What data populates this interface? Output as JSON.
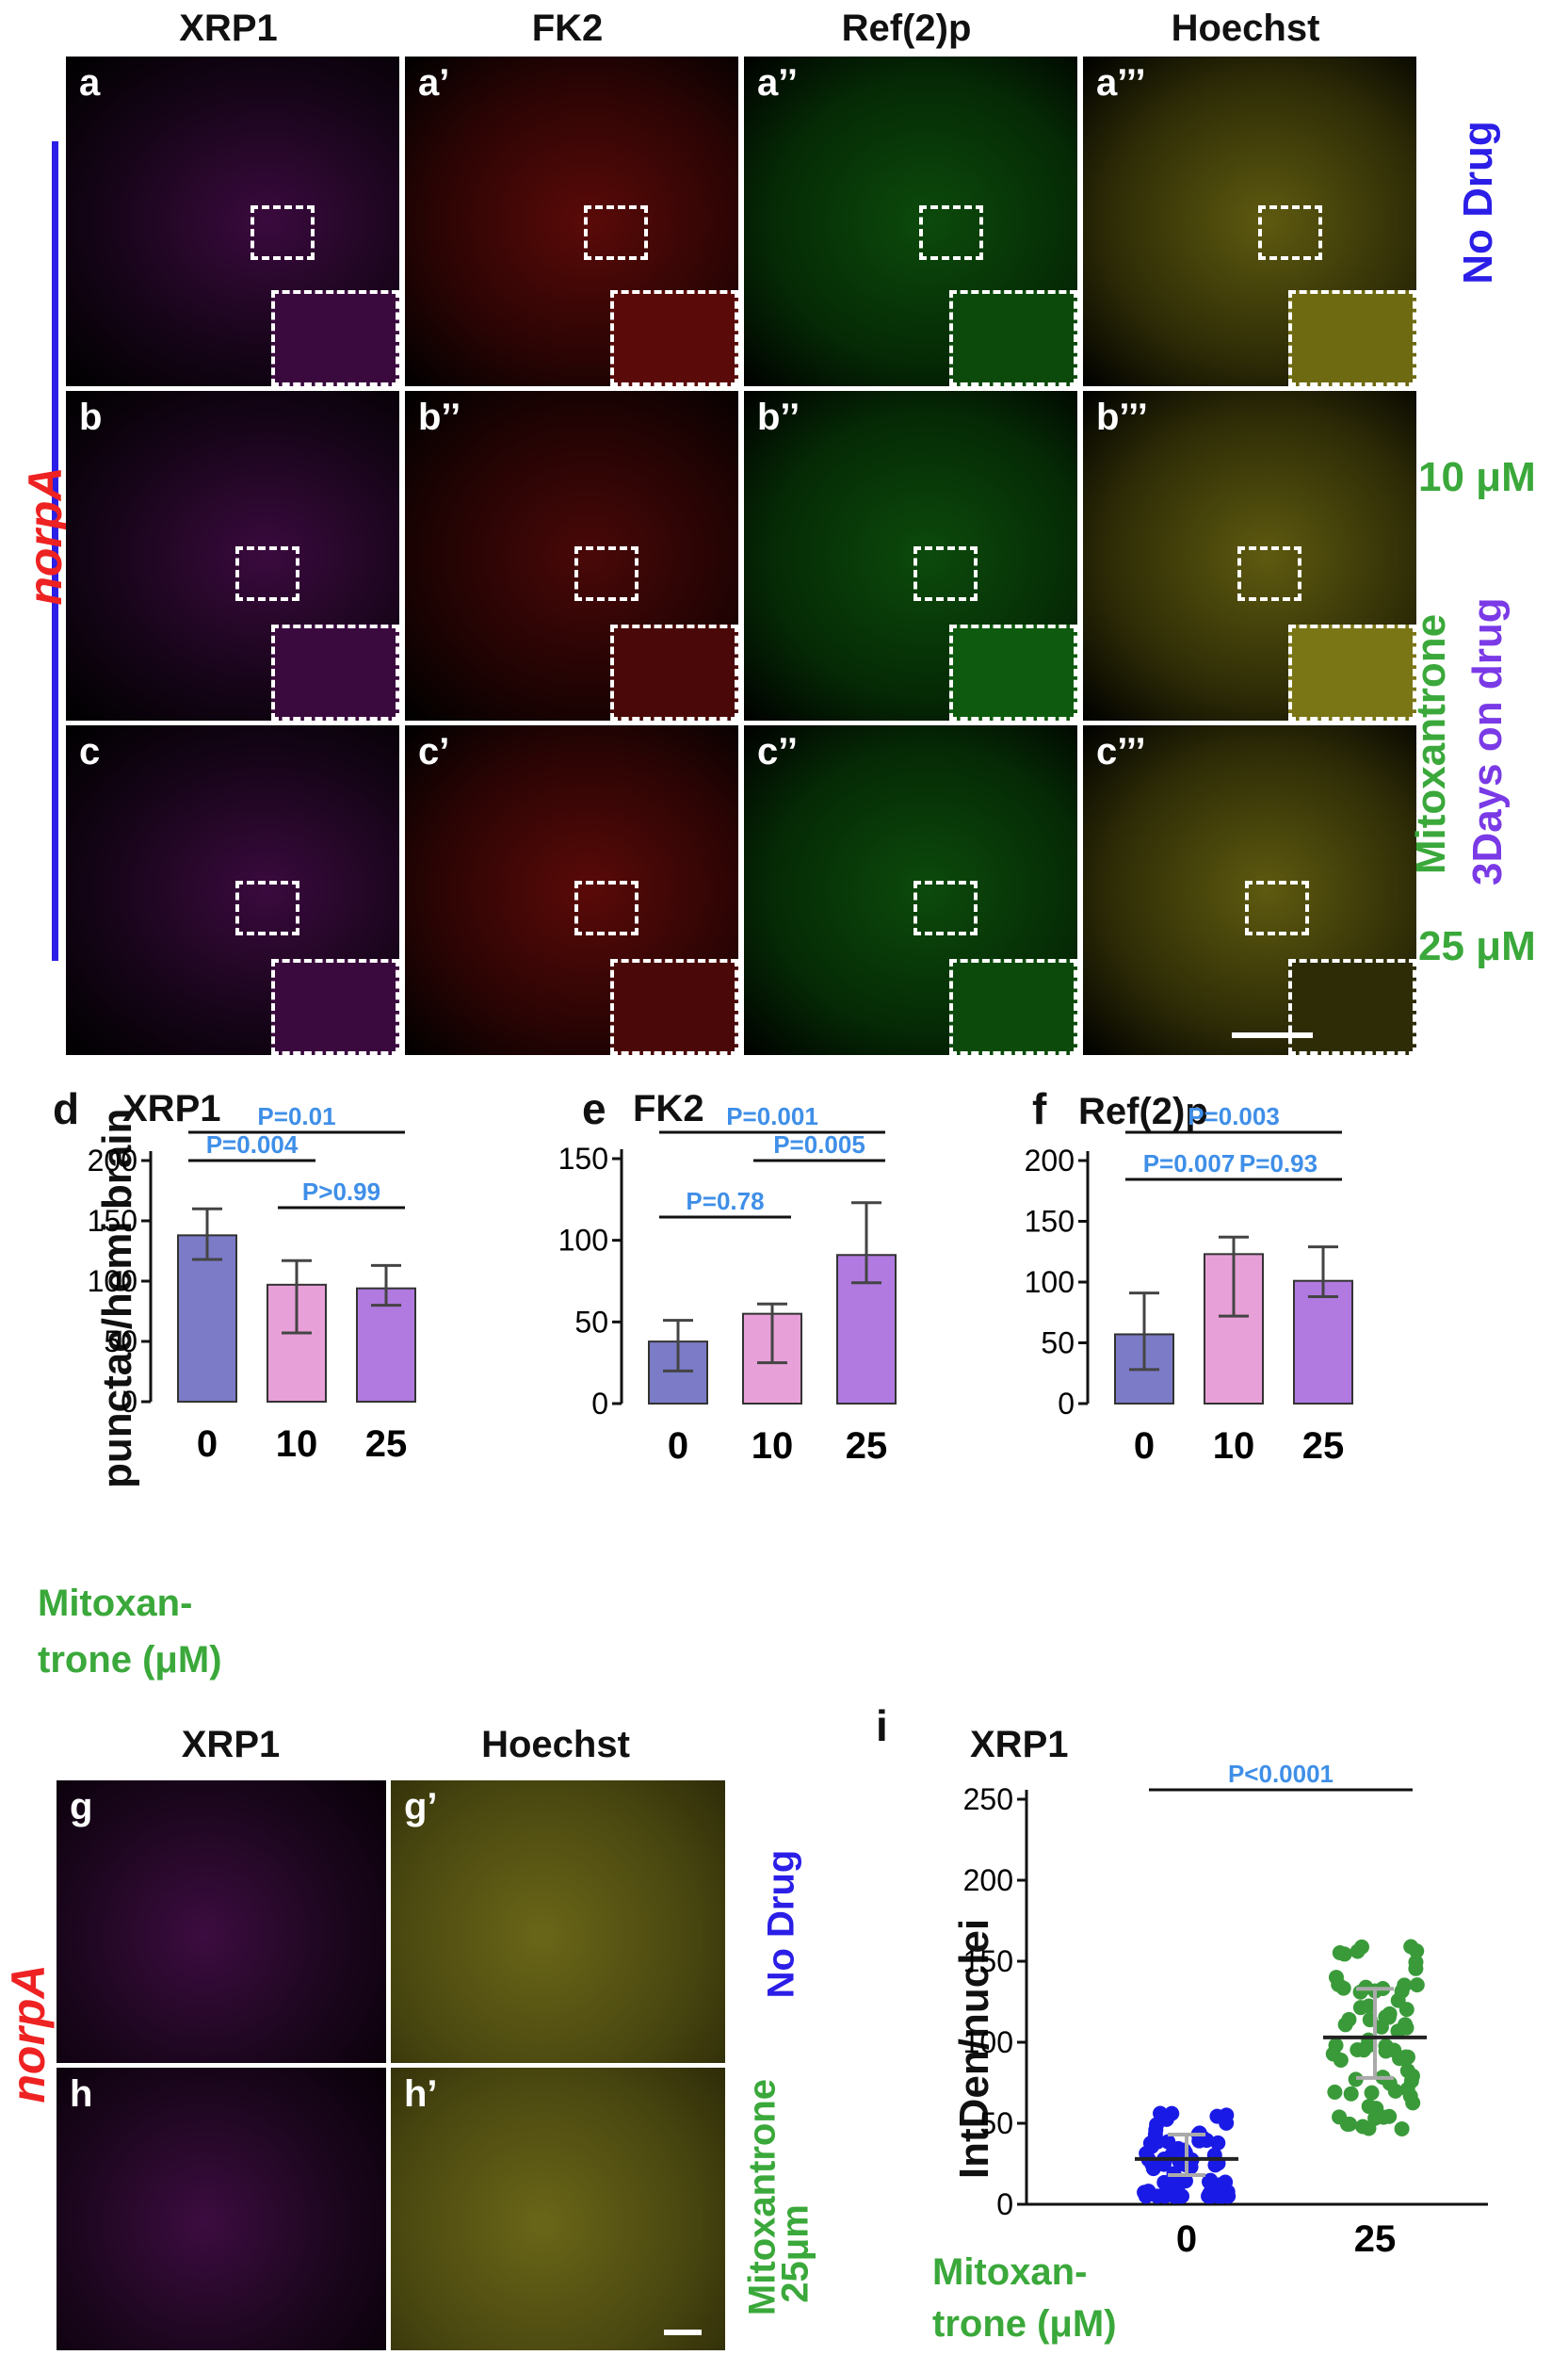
{
  "top": {
    "columns": [
      "XRP1",
      "FK2",
      "Ref(2)p",
      "Hoechst"
    ],
    "rows": [
      [
        "a",
        "a’",
        "a’’",
        "a’’’"
      ],
      [
        "b",
        "b’’",
        "b’’",
        "b’’’"
      ],
      [
        "c",
        "c’",
        "c’’",
        "c’’’"
      ]
    ],
    "genotype": "norpA",
    "right_labels": {
      "no_drug": "No Drug",
      "dose_10": "10 μM",
      "drug": "Mitoxantrone",
      "duration": "3Days on drug",
      "dose_25": "25 μM"
    }
  },
  "charts": {
    "ylabel": "punctae/hemi brain",
    "xaxis_label_line1": "Mitoxan-",
    "xaxis_label_line2": "trone (μM)"
  },
  "chart_data": [
    {
      "type": "bar",
      "panel": "d",
      "title": "XRP1",
      "categories": [
        "0",
        "10",
        "25"
      ],
      "values": [
        138,
        97,
        94
      ],
      "errors": [
        [
          118,
          160
        ],
        [
          57,
          117
        ],
        [
          80,
          113
        ]
      ],
      "ylim": [
        0,
        200
      ],
      "yticks": [
        "0",
        "50",
        "100",
        "150",
        "200"
      ],
      "annotations": [
        "P=0.01",
        "P=0.004",
        "P>0.99"
      ],
      "colors": [
        "#7b7bc8",
        "#e8a0d8",
        "#b07ae0"
      ]
    },
    {
      "type": "bar",
      "panel": "e",
      "title": "FK2",
      "categories": [
        "0",
        "10",
        "25"
      ],
      "values": [
        38,
        55,
        91
      ],
      "errors": [
        [
          20,
          51
        ],
        [
          25,
          61
        ],
        [
          74,
          123
        ]
      ],
      "ylim": [
        0,
        150
      ],
      "yticks": [
        "0",
        "50",
        "100",
        "150"
      ],
      "annotations": [
        "P=0.001",
        "P=0.005",
        "P=0.78"
      ],
      "colors": [
        "#7b7bc8",
        "#e8a0d8",
        "#b07ae0"
      ]
    },
    {
      "type": "bar",
      "panel": "f",
      "title": "Ref(2)p",
      "categories": [
        "0",
        "10",
        "25"
      ],
      "values": [
        57,
        123,
        101
      ],
      "errors": [
        [
          28,
          91
        ],
        [
          72,
          137
        ],
        [
          88,
          129
        ]
      ],
      "ylim": [
        0,
        200
      ],
      "yticks": [
        "0",
        "50",
        "100",
        "150",
        "200"
      ],
      "annotations": [
        "P=0.003",
        "P=0.007",
        "P=0.93"
      ],
      "colors": [
        "#7b7bc8",
        "#e8a0d8",
        "#b07ae0"
      ]
    },
    {
      "type": "scatter",
      "panel": "i",
      "title": "XRP1",
      "ylabel": "IntDen/nuclei",
      "categories": [
        "0",
        "25"
      ],
      "medians": [
        28,
        103
      ],
      "errors": [
        [
          18,
          43
        ],
        [
          78,
          133
        ]
      ],
      "ylim": [
        0,
        250
      ],
      "yticks": [
        "0",
        "50",
        "100",
        "150",
        "200",
        "250"
      ],
      "annotations": [
        "P<0.0001"
      ],
      "colors": [
        "#1a1ae6",
        "#3a9a3a"
      ]
    }
  ],
  "bottom": {
    "columns": [
      "XRP1",
      "Hoechst"
    ],
    "rows": [
      [
        "g",
        "g’"
      ],
      [
        "h",
        "h’"
      ]
    ],
    "genotype": "norpA",
    "right_labels": {
      "no_drug": "No Drug",
      "drug": "Mitoxantrone",
      "dose": "25μm"
    }
  },
  "letters": {
    "d": "d",
    "e": "e",
    "f": "f",
    "i": "i"
  }
}
